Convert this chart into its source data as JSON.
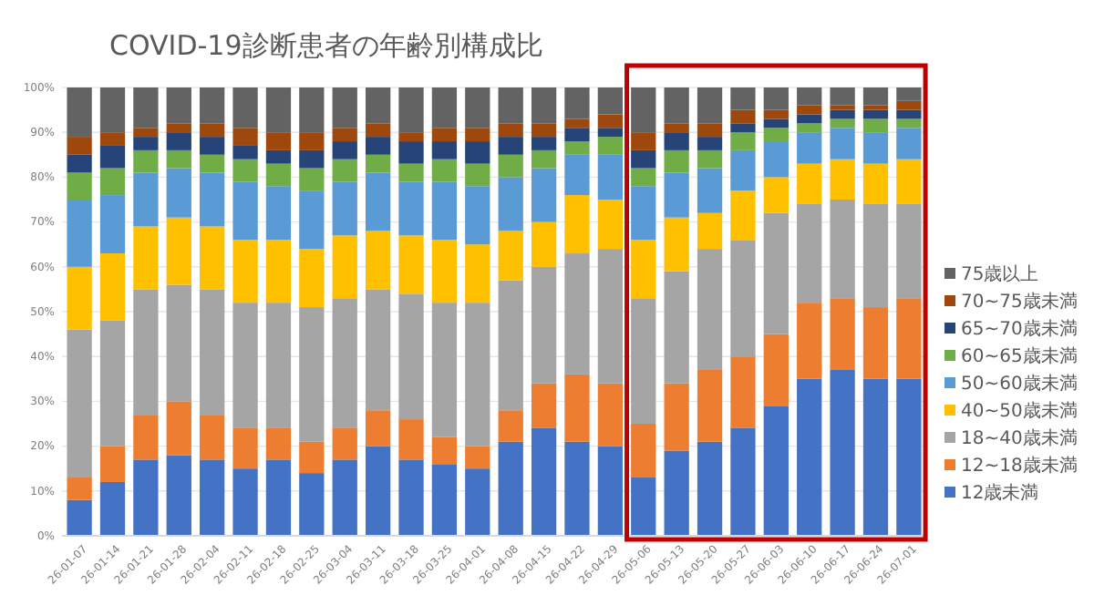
{
  "chart_data": {
    "type": "bar",
    "stacked": true,
    "title": "COVID-19診断患者の年齢別構成比",
    "categories": [
      "26-01-07",
      "26-01-14",
      "26-01-21",
      "26-01-28",
      "26-02-04",
      "26-02-11",
      "26-02-18",
      "26-02-25",
      "26-03-04",
      "26-03-11",
      "26-03-18",
      "26-03-25",
      "26-04-01",
      "26-04-08",
      "26-04-15",
      "26-04-22",
      "26-04-29",
      "26-05-06",
      "26-05-13",
      "26-05-20",
      "26-05-27",
      "26-06-03",
      "26-06-10",
      "26-06-17",
      "26-06-24",
      "26-07-01"
    ],
    "series": [
      {
        "name": "12歳未満",
        "color": "#4472c4",
        "values": [
          8,
          12,
          17,
          18,
          17,
          15,
          17,
          14,
          17,
          20,
          17,
          16,
          15,
          21,
          24,
          21,
          20,
          13,
          19,
          21,
          24,
          29,
          35,
          37,
          35,
          35
        ]
      },
      {
        "name": "12~18歳未満",
        "color": "#ed7d31",
        "values": [
          5,
          8,
          10,
          12,
          10,
          9,
          7,
          7,
          7,
          8,
          9,
          6,
          5,
          7,
          10,
          15,
          14,
          12,
          15,
          16,
          16,
          16,
          17,
          16,
          16,
          18
        ]
      },
      {
        "name": "18~40歳未満",
        "color": "#a5a5a5",
        "values": [
          33,
          28,
          28,
          26,
          28,
          28,
          28,
          30,
          29,
          27,
          28,
          30,
          32,
          29,
          26,
          27,
          30,
          28,
          25,
          27,
          26,
          27,
          22,
          22,
          23,
          21
        ]
      },
      {
        "name": "40~50歳未満",
        "color": "#ffc000",
        "values": [
          14,
          15,
          14,
          15,
          14,
          14,
          14,
          13,
          14,
          13,
          13,
          14,
          13,
          11,
          10,
          13,
          11,
          13,
          12,
          8,
          11,
          8,
          9,
          9,
          9,
          10
        ]
      },
      {
        "name": "50~60歳未満",
        "color": "#5b9bd5",
        "values": [
          15,
          13,
          12,
          11,
          12,
          13,
          12,
          13,
          12,
          13,
          12,
          13,
          13,
          12,
          12,
          9,
          10,
          12,
          10,
          10,
          9,
          8,
          7,
          7,
          7,
          7
        ]
      },
      {
        "name": "60~65歳未満",
        "color": "#70ad47",
        "values": [
          6,
          6,
          5,
          4,
          4,
          5,
          5,
          5,
          5,
          4,
          4,
          5,
          5,
          5,
          4,
          3,
          4,
          4,
          5,
          4,
          4,
          3,
          2,
          2,
          3,
          2
        ]
      },
      {
        "name": "65~70歳未満",
        "color": "#264478",
        "values": [
          4,
          5,
          3,
          4,
          4,
          3,
          3,
          4,
          4,
          4,
          5,
          4,
          5,
          4,
          3,
          3,
          2,
          4,
          4,
          3,
          2,
          2,
          2,
          2,
          2,
          2
        ]
      },
      {
        "name": "70~75歳未満",
        "color": "#9e480e",
        "values": [
          4,
          3,
          2,
          2,
          3,
          4,
          4,
          4,
          3,
          3,
          2,
          3,
          3,
          3,
          3,
          2,
          3,
          4,
          2,
          3,
          3,
          2,
          2,
          1,
          1,
          2
        ]
      },
      {
        "name": "75歳以上",
        "color": "#636363",
        "values": [
          11,
          10,
          9,
          8,
          8,
          9,
          10,
          10,
          9,
          8,
          10,
          9,
          9,
          8,
          8,
          7,
          6,
          10,
          8,
          8,
          5,
          5,
          4,
          4,
          4,
          3
        ]
      }
    ],
    "ylim": [
      0,
      100
    ],
    "yticks": [
      {
        "value": 0,
        "label": "0%"
      },
      {
        "value": 10,
        "label": "10%"
      },
      {
        "value": 20,
        "label": "20%"
      },
      {
        "value": 30,
        "label": "30%"
      },
      {
        "value": 40,
        "label": "40%"
      },
      {
        "value": 50,
        "label": "50%"
      },
      {
        "value": 60,
        "label": "60%"
      },
      {
        "value": 70,
        "label": "70%"
      },
      {
        "value": 80,
        "label": "80%"
      },
      {
        "value": 90,
        "label": "90%"
      },
      {
        "value": 100,
        "label": "100%"
      }
    ],
    "grid": "y",
    "legend": "right"
  }
}
